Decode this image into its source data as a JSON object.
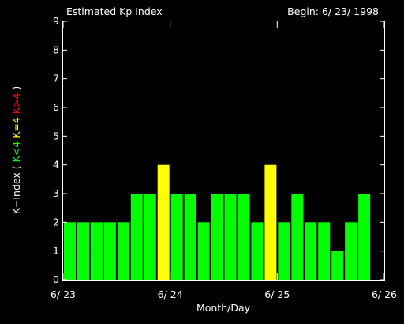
{
  "chart_data": {
    "type": "bar",
    "title": "Estimated Kp Index",
    "begin_label": "Begin: 6/ 23/ 1998",
    "xlabel": "Month/Day",
    "ylabel_parts": [
      {
        "text": "K−Index ( ",
        "color": "#ffffff"
      },
      {
        "text": "K<4 ",
        "color": "#00ff00"
      },
      {
        "text": "K=4 ",
        "color": "#ffff00"
      },
      {
        "text": "K>4",
        "color": "#ff0000"
      },
      {
        "text": " )",
        "color": "#ffffff"
      }
    ],
    "ylim": [
      0,
      9
    ],
    "yticks": [
      "0",
      "1",
      "2",
      "3",
      "4",
      "5",
      "6",
      "7",
      "8",
      "9"
    ],
    "xlim_days": [
      0,
      3
    ],
    "xticks": [
      {
        "day": 0,
        "label": "6/ 23"
      },
      {
        "day": 1,
        "label": "6/ 24"
      },
      {
        "day": 2,
        "label": "6/ 25"
      },
      {
        "day": 3,
        "label": "6/ 26"
      }
    ],
    "interval_hours": 3,
    "values": [
      2,
      2,
      2,
      2,
      2,
      3,
      3,
      4,
      3,
      3,
      2,
      3,
      3,
      3,
      2,
      4,
      2,
      3,
      2,
      2,
      1,
      2,
      3
    ],
    "colors": {
      "below_4": "#00ff00",
      "equal_4": "#ffff00",
      "above_4": "#ff0000",
      "axes": "#ffffff",
      "background": "#000000"
    },
    "grid": false,
    "legend": "none"
  }
}
